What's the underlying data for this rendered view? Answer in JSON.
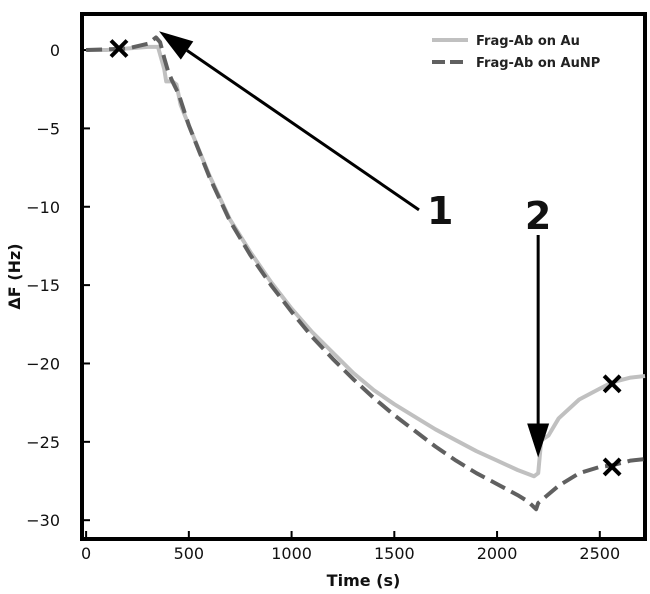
{
  "chart_data": {
    "type": "line",
    "xlabel": "Time (s)",
    "ylabel": "ΔF (Hz)",
    "xlim": [
      -20,
      2720
    ],
    "ylim": [
      -31.2,
      2.3
    ],
    "xticks": [
      0,
      500,
      1000,
      1500,
      2000,
      2500
    ],
    "xtick_labels": [
      "0",
      "500",
      "1000",
      "1500",
      "2000",
      "2500"
    ],
    "yticks": [
      0,
      -5,
      -10,
      -15,
      -20,
      -25,
      -30
    ],
    "ytick_labels": [
      "0",
      "−5",
      "−10",
      "−15",
      "−20",
      "−25",
      "−30"
    ],
    "grid": false,
    "legend_position": "top-right",
    "series": [
      {
        "name": "Frag-Ab on Au",
        "color": "#c0c0c0",
        "dash": "solid",
        "x": [
          0,
          100,
          200,
          300,
          350,
          380,
          390,
          420,
          440,
          460,
          500,
          600,
          700,
          800,
          900,
          1000,
          1100,
          1200,
          1300,
          1400,
          1500,
          1600,
          1700,
          1800,
          1900,
          2000,
          2100,
          2180,
          2200,
          2215,
          2250,
          2300,
          2400,
          2500,
          2560,
          2650,
          2720
        ],
        "y": [
          0,
          0,
          0.1,
          0.2,
          0.2,
          -1.2,
          -2.0,
          -2.0,
          -2.2,
          -3.5,
          -4.8,
          -8.0,
          -10.8,
          -12.9,
          -14.8,
          -16.5,
          -18.0,
          -19.3,
          -20.6,
          -21.7,
          -22.6,
          -23.4,
          -24.2,
          -24.9,
          -25.6,
          -26.2,
          -26.8,
          -27.2,
          -27.0,
          -24.9,
          -24.6,
          -23.5,
          -22.3,
          -21.6,
          -21.2,
          -20.9,
          -20.8
        ]
      },
      {
        "name": "Frag-Ab on AuNP",
        "color": "#606060",
        "dash": "dashed",
        "x": [
          0,
          100,
          200,
          300,
          340,
          360,
          380,
          400,
          420,
          450,
          500,
          600,
          700,
          800,
          900,
          1000,
          1100,
          1200,
          1300,
          1400,
          1500,
          1600,
          1700,
          1800,
          1900,
          2000,
          2100,
          2150,
          2190,
          2200,
          2300,
          2400,
          2500,
          2560,
          2650,
          2720
        ],
        "y": [
          0,
          0.05,
          0.1,
          0.4,
          0.8,
          0.5,
          -0.5,
          -1.4,
          -2.0,
          -2.8,
          -4.8,
          -8.1,
          -10.9,
          -13.1,
          -15.0,
          -16.7,
          -18.3,
          -19.7,
          -21.0,
          -22.2,
          -23.3,
          -24.3,
          -25.3,
          -26.2,
          -27.0,
          -27.7,
          -28.4,
          -28.8,
          -29.3,
          -28.9,
          -27.8,
          -27.0,
          -26.6,
          -26.5,
          -26.2,
          -26.1
        ]
      }
    ],
    "markers": [
      {
        "symbol": "×",
        "x": 160,
        "y": 0.1
      },
      {
        "symbol": "×",
        "x": 2560,
        "y": -21.3
      },
      {
        "symbol": "×",
        "x": 2560,
        "y": -26.6
      }
    ],
    "annotations": [
      {
        "text": "1",
        "tail": [
          1620,
          -10.2
        ],
        "head": [
          355,
          1.2
        ]
      },
      {
        "text": "2",
        "tail": [
          2200,
          -11.8
        ],
        "head": [
          2200,
          -26.0
        ]
      }
    ]
  }
}
